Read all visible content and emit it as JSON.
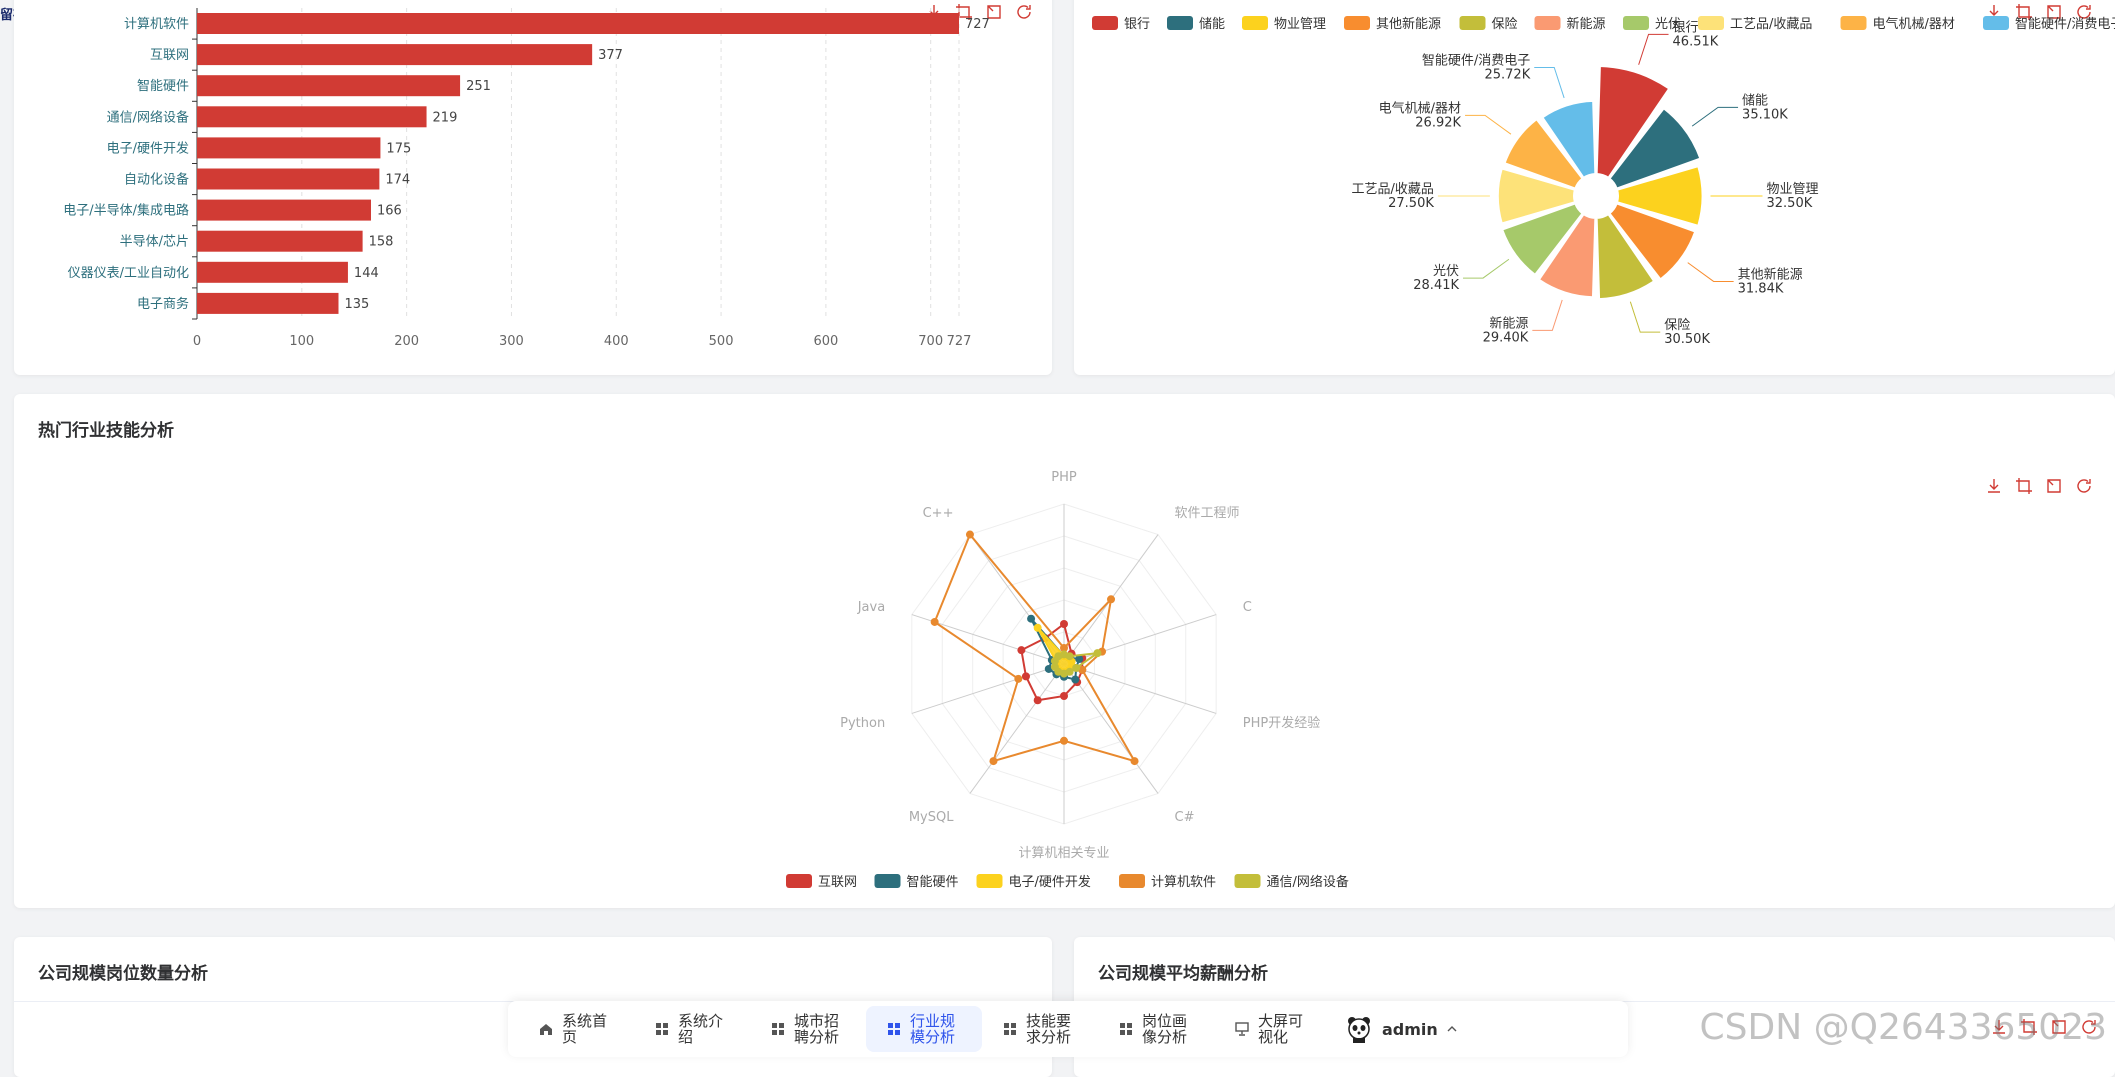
{
  "topleft_tag": "留存",
  "watermark": "CSDN @Q2643365023",
  "bar_chart": {
    "chart_data": {
      "type": "bar",
      "categories": [
        "计算机软件",
        "互联网",
        "智能硬件",
        "通信/网络设备",
        "电子/硬件开发",
        "自动化设备",
        "电子/半导体/集成电路",
        "半导体/芯片",
        "仪器仪表/工业自动化",
        "电子商务"
      ],
      "values": [
        727,
        377,
        251,
        219,
        175,
        174,
        166,
        158,
        144,
        135
      ],
      "xticks": [
        "0",
        "100",
        "200",
        "300",
        "400",
        "500",
        "600",
        "700",
        "727"
      ],
      "xlim": [
        0,
        727
      ],
      "color": "#d13b34"
    }
  },
  "pie_chart": {
    "chart_data": {
      "type": "pie",
      "rose": true,
      "labels": [
        "银行",
        "储能",
        "物业管理",
        "其他新能源",
        "保险",
        "新能源",
        "光伏",
        "工艺品/收藏品",
        "电气机械/器材",
        "智能硬件/消费电子"
      ],
      "values": [
        46.51,
        35.1,
        32.5,
        31.84,
        30.5,
        29.4,
        28.41,
        27.5,
        26.92,
        25.72
      ],
      "value_labels": [
        "46.51K",
        "35.10K",
        "32.50K",
        "31.84K",
        "30.50K",
        "29.40K",
        "28.41K",
        "27.50K",
        "26.92K",
        "25.72K"
      ],
      "colors": [
        "#d13b34",
        "#2d6f7d",
        "#fcd21e",
        "#f88d2f",
        "#c3be3a",
        "#fa9a72",
        "#a6c96a",
        "#fde279",
        "#fdb346",
        "#64bde9"
      ]
    }
  },
  "radar": {
    "title": "热门行业技能分析",
    "chart_data": {
      "type": "radar",
      "indicators": [
        "PHP",
        "软件工程师",
        "C",
        "PHP开发经验",
        "C#",
        "计算机相关专业",
        "MySQL",
        "Python",
        "Java",
        "C++"
      ],
      "series": [
        {
          "name": "互联网",
          "color": "#d13b34",
          "values": [
            0.25,
            0.08,
            0.12,
            0.12,
            0.14,
            0.2,
            0.28,
            0.25,
            0.28,
            0.2
          ]
        },
        {
          "name": "智能硬件",
          "color": "#2d6f7d",
          "values": [
            0.05,
            0.05,
            0.1,
            0.08,
            0.12,
            0.08,
            0.08,
            0.1,
            0.08,
            0.35
          ]
        },
        {
          "name": "电子/硬件开发",
          "color": "#fcd21e",
          "values": [
            0.05,
            0.05,
            0.05,
            0.05,
            0.05,
            0.05,
            0.05,
            0.05,
            0.05,
            0.28
          ]
        },
        {
          "name": "计算机软件",
          "color": "#e8892e",
          "values": [
            0.1,
            0.5,
            0.25,
            0.12,
            0.75,
            0.48,
            0.75,
            0.3,
            0.85,
            1.0
          ]
        },
        {
          "name": "通信/网络设备",
          "color": "#c3be3a",
          "values": [
            0.06,
            0.06,
            0.22,
            0.08,
            0.06,
            0.06,
            0.06,
            0.06,
            0.06,
            0.06
          ]
        }
      ]
    }
  },
  "company_count": {
    "title": "公司规模岗位数量分析"
  },
  "company_salary": {
    "title": "公司规模平均薪酬分析"
  },
  "nav": {
    "items": [
      {
        "label": "系统首页",
        "icon": "home-icon"
      },
      {
        "label": "系统介绍",
        "icon": "grid-icon"
      },
      {
        "label": "城市招聘分析",
        "icon": "grid-icon"
      },
      {
        "label": "行业规模分析",
        "icon": "grid-icon",
        "active": true
      },
      {
        "label": "技能要求分析",
        "icon": "grid-icon"
      },
      {
        "label": "岗位画像分析",
        "icon": "grid-icon"
      },
      {
        "label": "大屏可视化",
        "icon": "screen-icon"
      }
    ],
    "user": "admin"
  }
}
